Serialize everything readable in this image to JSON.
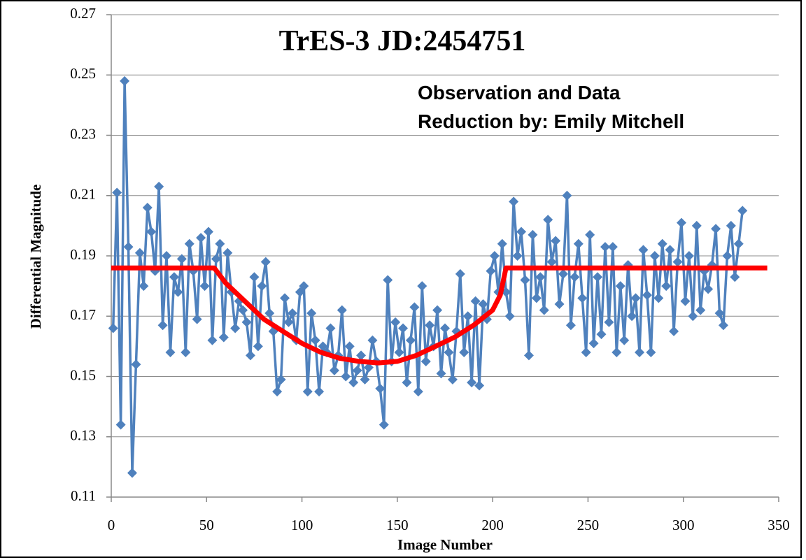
{
  "chart_data": {
    "type": "line",
    "title": "TrES-3 JD:2454751",
    "annotation": [
      "Observation and Data",
      "Reduction by: Emily Mitchell"
    ],
    "xlabel": "Image Number",
    "ylabel": "Differential Magnitude",
    "xlim": [
      0,
      350
    ],
    "xticks": [
      0,
      50,
      100,
      150,
      200,
      250,
      300,
      350
    ],
    "ylim": [
      0.11,
      0.27
    ],
    "yticks": [
      0.11,
      0.13,
      0.15,
      0.17,
      0.19,
      0.21,
      0.23,
      0.25,
      0.27
    ],
    "grid": true,
    "series": [
      {
        "color": "#4f81bd",
        "marker": "diamond",
        "x": [
          1,
          3,
          5,
          7,
          9,
          11,
          13,
          15,
          17,
          19,
          21,
          23,
          25,
          27,
          29,
          31,
          33,
          35,
          37,
          39,
          41,
          43,
          45,
          47,
          49,
          51,
          53,
          55,
          57,
          59,
          61,
          63,
          65,
          67,
          69,
          71,
          73,
          75,
          77,
          79,
          81,
          83,
          85,
          87,
          89,
          91,
          93,
          95,
          97,
          99,
          101,
          103,
          105,
          107,
          109,
          111,
          113,
          115,
          117,
          119,
          121,
          123,
          125,
          127,
          129,
          131,
          133,
          135,
          137,
          139,
          141,
          143,
          145,
          147,
          149,
          151,
          153,
          155,
          157,
          159,
          161,
          163,
          165,
          167,
          169,
          171,
          173,
          175,
          177,
          179,
          181,
          183,
          185,
          187,
          189,
          191,
          193,
          195,
          197,
          199,
          201,
          203,
          205,
          207,
          209,
          211,
          213,
          215,
          217,
          219,
          221,
          223,
          225,
          227,
          229,
          231,
          233,
          235,
          237,
          239,
          241,
          243,
          245,
          247,
          249,
          251,
          253,
          255,
          257,
          259,
          261,
          263,
          265,
          267,
          269,
          271,
          273,
          275,
          277,
          279,
          281,
          283,
          285,
          287,
          289,
          291,
          293,
          295,
          297,
          299,
          301,
          303,
          305,
          307,
          309,
          311,
          313,
          315,
          317,
          319,
          321,
          323,
          325,
          327,
          329,
          331
        ],
        "values": [
          0.166,
          0.211,
          0.134,
          0.248,
          0.193,
          0.118,
          0.154,
          0.191,
          0.18,
          0.206,
          0.198,
          0.185,
          0.213,
          0.167,
          0.19,
          0.158,
          0.183,
          0.178,
          0.189,
          0.158,
          0.194,
          0.185,
          0.169,
          0.196,
          0.18,
          0.198,
          0.162,
          0.189,
          0.194,
          0.163,
          0.191,
          0.178,
          0.166,
          0.175,
          0.172,
          0.168,
          0.157,
          0.183,
          0.16,
          0.18,
          0.188,
          0.171,
          0.165,
          0.145,
          0.149,
          0.176,
          0.168,
          0.171,
          0.162,
          0.178,
          0.18,
          0.145,
          0.171,
          0.162,
          0.145,
          0.16,
          0.158,
          0.166,
          0.152,
          0.157,
          0.172,
          0.15,
          0.16,
          0.148,
          0.152,
          0.157,
          0.149,
          0.153,
          0.162,
          0.155,
          0.146,
          0.134,
          0.182,
          0.155,
          0.168,
          0.158,
          0.166,
          0.148,
          0.162,
          0.173,
          0.145,
          0.18,
          0.155,
          0.167,
          0.16,
          0.172,
          0.151,
          0.166,
          0.158,
          0.149,
          0.165,
          0.184,
          0.158,
          0.17,
          0.148,
          0.175,
          0.147,
          0.174,
          0.169,
          0.185,
          0.19,
          0.178,
          0.194,
          0.178,
          0.17,
          0.208,
          0.19,
          0.198,
          0.182,
          0.157,
          0.197,
          0.176,
          0.183,
          0.172,
          0.202,
          0.188,
          0.195,
          0.174,
          0.184,
          0.21,
          0.167,
          0.183,
          0.194,
          0.176,
          0.158,
          0.197,
          0.161,
          0.183,
          0.164,
          0.193,
          0.168,
          0.193,
          0.158,
          0.18,
          0.162,
          0.187,
          0.17,
          0.176,
          0.158,
          0.192,
          0.177,
          0.158,
          0.19,
          0.176,
          0.194,
          0.18,
          0.192,
          0.165,
          0.188,
          0.201,
          0.175,
          0.19,
          0.17,
          0.2,
          0.172,
          0.185,
          0.179,
          0.187,
          0.199,
          0.171,
          0.167,
          0.19,
          0.2,
          0.183,
          0.194,
          0.205
        ]
      },
      {
        "color": "#ff0000",
        "marker": "none",
        "x": [
          0,
          54,
          60,
          70,
          80,
          90,
          100,
          110,
          120,
          130,
          140,
          150,
          160,
          170,
          180,
          190,
          200,
          204,
          207,
          344
        ],
        "values": [
          0.186,
          0.186,
          0.181,
          0.175,
          0.169,
          0.165,
          0.161,
          0.158,
          0.156,
          0.155,
          0.1545,
          0.155,
          0.157,
          0.16,
          0.163,
          0.167,
          0.172,
          0.177,
          0.186,
          0.186
        ]
      }
    ]
  }
}
